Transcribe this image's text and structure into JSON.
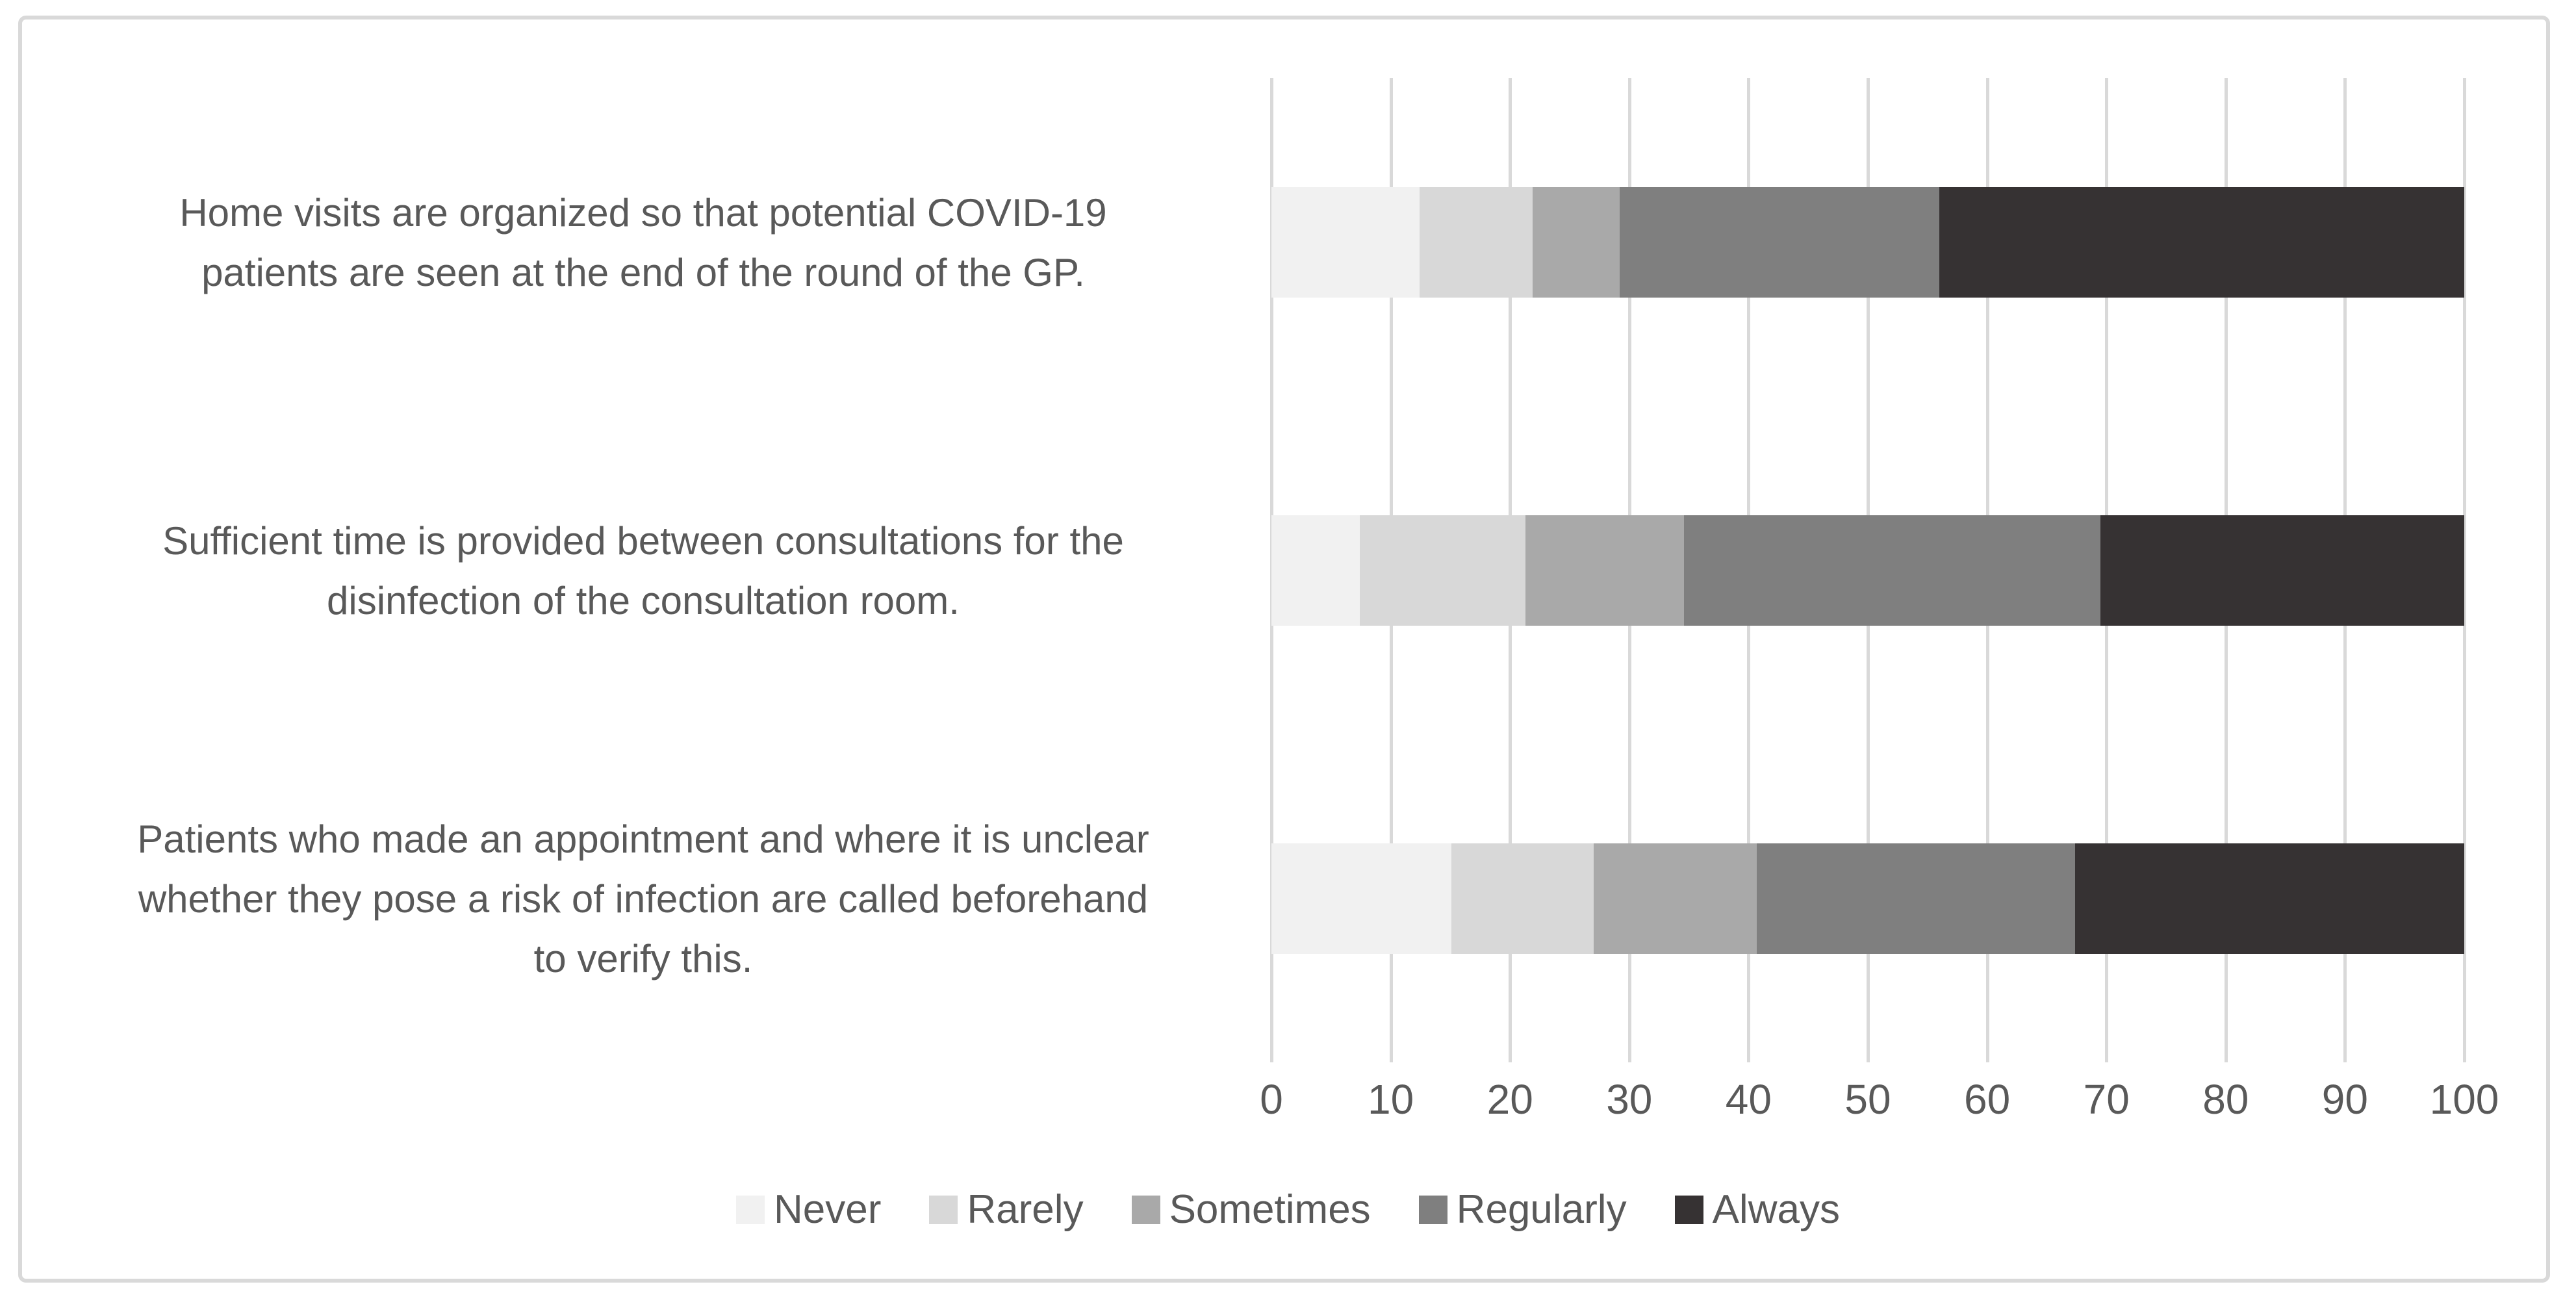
{
  "chart_data": {
    "type": "bar",
    "orientation": "horizontal",
    "stacked": true,
    "stack_total": 100,
    "title": "",
    "xlabel": "",
    "ylabel": "",
    "xlim": [
      0,
      100
    ],
    "x_ticks": [
      0,
      10,
      20,
      30,
      40,
      50,
      60,
      70,
      80,
      90,
      100
    ],
    "grid": "vertical",
    "legend_position": "bottom",
    "categories": [
      "Home visits are organized so that potential COVID-19\npatients are seen at the end of the round of the GP.",
      "Sufficient time is provided between consultations for the\ndisinfection of the consultation room.",
      "Patients who made an appointment and where it is unclear\nwhether they pose a risk of infection are called beforehand\nto verify this."
    ],
    "series": [
      {
        "name": "Never",
        "color": "#f1f1f1",
        "values": [
          12.4,
          7.4,
          15.1
        ]
      },
      {
        "name": "Rarely",
        "color": "#d8d8d8",
        "values": [
          9.5,
          13.9,
          11.9
        ]
      },
      {
        "name": "Sometimes",
        "color": "#a9a9a9",
        "values": [
          7.3,
          13.3,
          13.7
        ]
      },
      {
        "name": "Regularly",
        "color": "#7f7f7f",
        "values": [
          26.8,
          34.9,
          26.7
        ]
      },
      {
        "name": "Always",
        "color": "#363233",
        "values": [
          44.0,
          30.5,
          32.6
        ]
      }
    ]
  },
  "style_colors": {
    "gridline": "#d9d9d9",
    "frame_border": "#d9d9d9",
    "axis_text": "#595959",
    "category_text": "#595959",
    "legend_text": "#595959"
  }
}
